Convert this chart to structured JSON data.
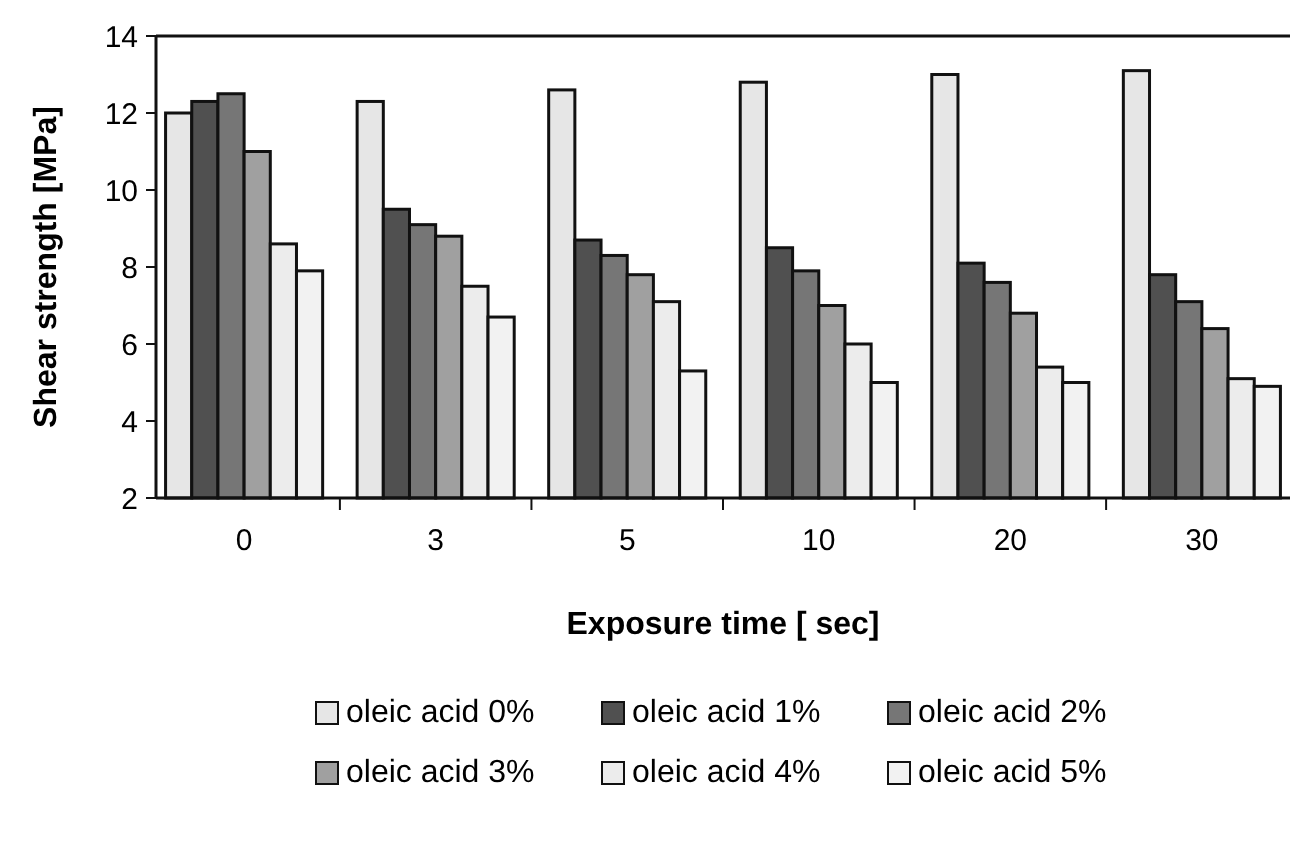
{
  "chart_data": {
    "type": "bar",
    "xlabel": "Exposure time [ sec]",
    "ylabel": "Shear strength [MPa]",
    "categories": [
      "0",
      "3",
      "5",
      "10",
      "20",
      "30"
    ],
    "series": [
      {
        "name": "oleic acid 0%",
        "color": "#e6e6e6",
        "values": [
          12.0,
          12.3,
          12.6,
          12.8,
          13.0,
          13.1
        ]
      },
      {
        "name": "oleic acid 1%",
        "color": "#505050",
        "values": [
          12.3,
          9.5,
          8.7,
          8.5,
          8.1,
          7.8
        ]
      },
      {
        "name": "oleic acid 2%",
        "color": "#767676",
        "values": [
          12.5,
          9.1,
          8.3,
          7.9,
          7.6,
          7.1
        ]
      },
      {
        "name": "oleic acid 3%",
        "color": "#a0a0a0",
        "values": [
          11.0,
          8.8,
          7.8,
          7.0,
          6.8,
          6.4
        ]
      },
      {
        "name": "oleic acid 4%",
        "color": "#ececec",
        "values": [
          8.6,
          7.5,
          7.1,
          6.0,
          5.4,
          5.1
        ]
      },
      {
        "name": "oleic acid 5%",
        "color": "#f2f2f2",
        "values": [
          7.9,
          6.7,
          5.3,
          5.0,
          5.0,
          4.9
        ]
      }
    ],
    "ylim": [
      2,
      14
    ],
    "yticks": [
      2,
      4,
      6,
      8,
      10,
      12,
      14
    ],
    "grid": false,
    "legend": "bottom"
  }
}
